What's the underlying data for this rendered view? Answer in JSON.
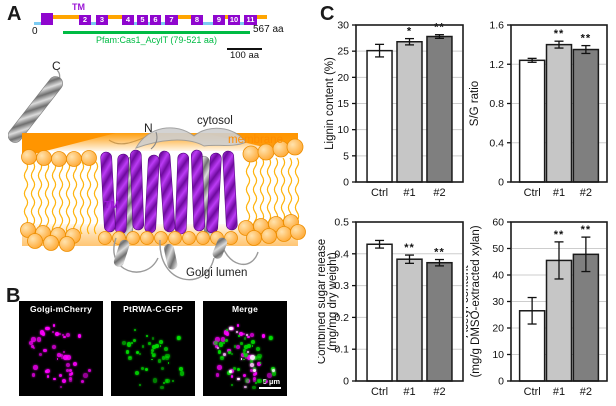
{
  "figure": {
    "panel_a": {
      "label": "A",
      "diagram": {
        "tm_label": "TM",
        "n_start": "0",
        "n_end": "567 aa",
        "pfam": "Pfam:Cas1_AcylT (79-521 aa)",
        "scale_bar": "100 aa",
        "tm_numbers": [
          "",
          "2",
          "3",
          "4",
          "5",
          "6",
          "7",
          "8",
          "9",
          "10",
          "11"
        ],
        "colors": {
          "backbone": "#FFA500",
          "tm_box": "#8F06CE",
          "lumen_loop": "#7CCBF2",
          "pfam_green": "#00BB44"
        }
      },
      "structure": {
        "c_terminus": "C",
        "n_terminus": "N",
        "cytosol": "cytosol",
        "membrane": "membrane",
        "tm": "TM",
        "golgi_lumen": "Golgi lumen",
        "colors": {
          "membrane_orange": "#FF9900",
          "helix_purple": "#9B17D6",
          "ribbon_gray": "#9a9a9a"
        }
      }
    },
    "panel_b": {
      "label": "B",
      "panels": [
        {
          "title": "Golgi-mCherry"
        },
        {
          "title": "PtRWA-C-GFP"
        },
        {
          "title": "Merge",
          "scale_bar": "5 µm"
        }
      ]
    },
    "panel_c": {
      "label": "C"
    }
  },
  "chart_data": [
    {
      "type": "bar",
      "ylabel": [
        "Lignin content (%)"
      ],
      "categories": [
        "Ctrl",
        "#1",
        "#2"
      ],
      "values": [
        25.1,
        26.8,
        27.8
      ],
      "errors": [
        1.2,
        0.6,
        0.35
      ],
      "significance": [
        "",
        "*",
        "**"
      ],
      "ylim": [
        0,
        30
      ],
      "yticks": [
        0,
        5,
        10,
        15,
        20,
        25,
        30
      ],
      "ytick_labels": [
        "0",
        "5",
        "10",
        "15",
        "20",
        "25",
        "30"
      ],
      "bar_colors": [
        "#FFFFFF",
        "#C6C6C6",
        "#7F7F7F"
      ],
      "grid": true,
      "legend": null
    },
    {
      "type": "bar",
      "ylabel": [
        "S/G ratio"
      ],
      "categories": [
        "Ctrl",
        "#1",
        "#2"
      ],
      "values": [
        1.24,
        1.4,
        1.35
      ],
      "errors": [
        0.02,
        0.035,
        0.04
      ],
      "significance": [
        "",
        "**",
        "**"
      ],
      "ylim": [
        0,
        1.6
      ],
      "yticks": [
        0,
        0.4,
        0.8,
        1.2,
        1.6
      ],
      "ytick_labels": [
        "0",
        "0.4",
        "0.8",
        "1.2",
        "1.6"
      ],
      "bar_colors": [
        "#FFFFFF",
        "#C6C6C6",
        "#7F7F7F"
      ],
      "grid": true,
      "legend": null
    },
    {
      "type": "bar",
      "ylabel": [
        "Combined sugar release",
        "(mg/mg dry weight)"
      ],
      "categories": [
        "Ctrl",
        "#1",
        "#2"
      ],
      "values": [
        0.43,
        0.383,
        0.372
      ],
      "errors": [
        0.012,
        0.013,
        0.01
      ],
      "significance": [
        "",
        "**",
        "**"
      ],
      "ylim": [
        0,
        0.5
      ],
      "yticks": [
        0,
        0.1,
        0.2,
        0.3,
        0.4,
        0.5
      ],
      "ytick_labels": [
        "0",
        "0.1",
        "0.2",
        "0.3",
        "0.4",
        "0.5"
      ],
      "bar_colors": [
        "#FFFFFF",
        "#C6C6C6",
        "#7F7F7F"
      ],
      "grid": true,
      "legend": null
    },
    {
      "type": "bar",
      "ylabel": [
        "Acetyl content",
        "(mg/g DMSO-extracted xylan)"
      ],
      "categories": [
        "Ctrl",
        "#1",
        "#2"
      ],
      "values": [
        26.5,
        45.5,
        47.8
      ],
      "errors": [
        5.0,
        7.0,
        6.5
      ],
      "significance": [
        "",
        "**",
        "**"
      ],
      "ylim": [
        0,
        60
      ],
      "yticks": [
        0,
        10,
        20,
        30,
        40,
        50,
        60
      ],
      "ytick_labels": [
        "0",
        "10",
        "20",
        "30",
        "40",
        "50",
        "60"
      ],
      "bar_colors": [
        "#FFFFFF",
        "#C6C6C6",
        "#7F7F7F"
      ],
      "grid": true,
      "legend": null
    }
  ]
}
